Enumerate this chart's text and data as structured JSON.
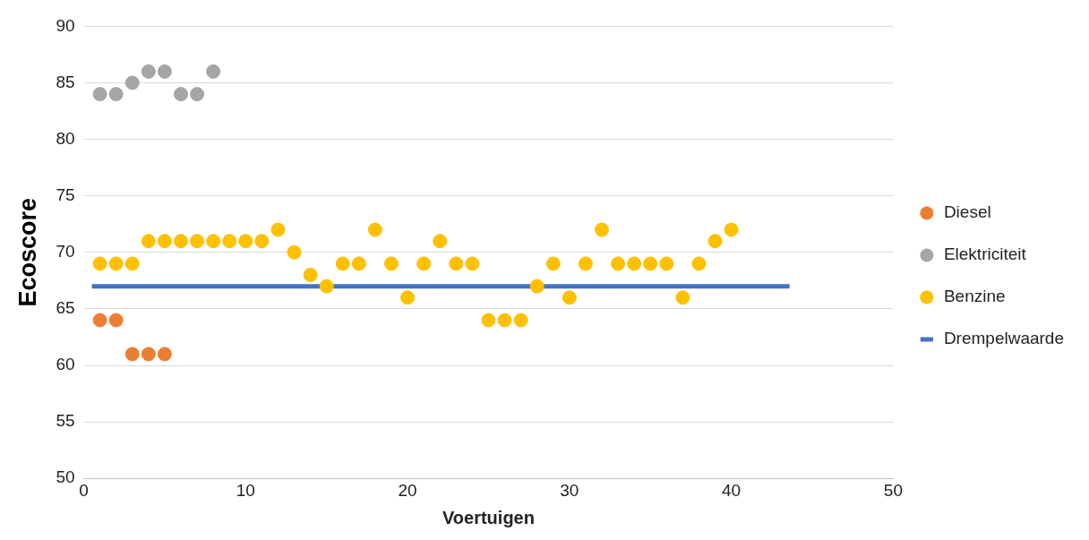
{
  "chart_data": {
    "type": "scatter",
    "xlabel": "Voertuigen",
    "ylabel": "Ecoscore",
    "xlim": [
      0,
      50
    ],
    "xticks": [
      0,
      10,
      20,
      30,
      40,
      50
    ],
    "ylim": [
      50,
      90
    ],
    "yticks": [
      50,
      55,
      60,
      65,
      70,
      75,
      80,
      85,
      90
    ],
    "grid": "y",
    "legend": "right",
    "marker": "circle",
    "series": [
      {
        "name": "Diesel",
        "color": "#ed7d31",
        "x": [
          1,
          2,
          3,
          4,
          5
        ],
        "values": [
          64,
          64,
          61,
          61,
          61
        ]
      },
      {
        "name": "Elektriciteit",
        "color": "#a5a5a5",
        "x": [
          1,
          2,
          3,
          4,
          5,
          6,
          7,
          8
        ],
        "values": [
          84,
          84,
          85,
          86,
          86,
          84,
          84,
          86
        ]
      },
      {
        "name": "Benzine",
        "color": "#ffc000",
        "x": [
          1,
          2,
          3,
          4,
          5,
          6,
          7,
          8,
          9,
          10,
          11,
          12,
          13,
          14,
          15,
          16,
          17,
          18,
          19,
          20,
          21,
          22,
          23,
          24,
          25,
          26,
          27,
          28,
          29,
          30,
          31,
          32,
          33,
          34,
          35,
          36,
          37,
          38,
          39,
          40
        ],
        "values": [
          69,
          69,
          69,
          71,
          71,
          71,
          71,
          71,
          71,
          71,
          71,
          72,
          70,
          68,
          67,
          69,
          69,
          72,
          69,
          66,
          69,
          71,
          69,
          69,
          64,
          64,
          64,
          67,
          69,
          66,
          69,
          72,
          69,
          69,
          69,
          69,
          66,
          69,
          71,
          72
        ]
      },
      {
        "name": "Drempelwaarde",
        "color": "#4472c4",
        "type": "line",
        "marker": "none",
        "x": [
          0.5,
          43.6
        ],
        "values": [
          67,
          67
        ]
      }
    ]
  }
}
